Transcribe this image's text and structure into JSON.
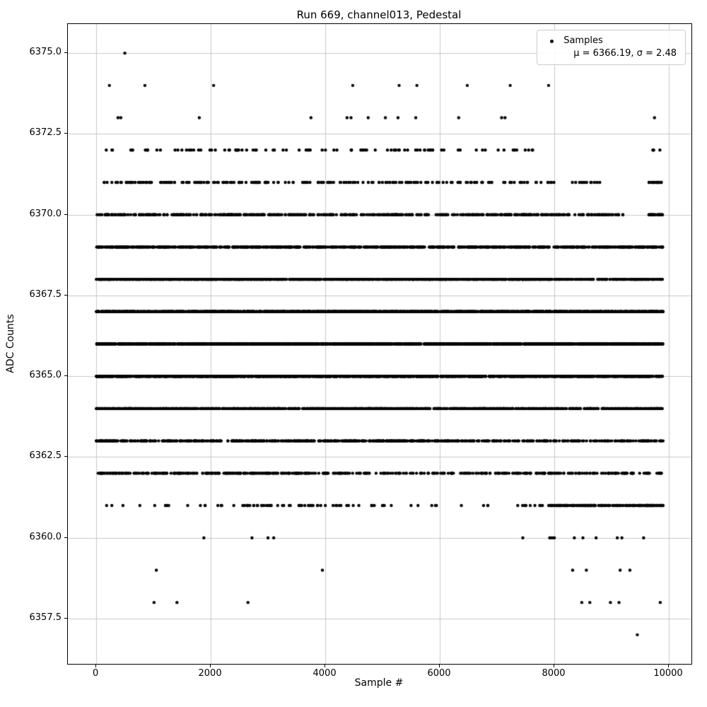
{
  "figure": {
    "title": "Run 669, channel013, Pedestal",
    "xlabel": "Sample #",
    "ylabel": "ADC Counts",
    "legend": {
      "marker": "dot-icon",
      "line1": "Samples",
      "line2": "μ = 6366.19, σ = 2.48"
    }
  },
  "chart_data": {
    "type": "scatter",
    "title": "Run 669, channel013, Pedestal",
    "xlabel": "Sample #",
    "ylabel": "ADC Counts",
    "xlim": [
      -495,
      10395
    ],
    "ylim": [
      6356.1,
      6375.9
    ],
    "xticks": [
      0,
      2000,
      4000,
      6000,
      8000,
      10000
    ],
    "xtick_labels": [
      "0",
      "2000",
      "4000",
      "6000",
      "8000",
      "10000"
    ],
    "yticks": [
      6357.5,
      6360.0,
      6362.5,
      6365.0,
      6367.5,
      6370.0,
      6372.5,
      6375.0
    ],
    "ytick_labels": [
      "6357.5",
      "6360.0",
      "6362.5",
      "6365.0",
      "6367.5",
      "6370.0",
      "6372.5",
      "6375.0"
    ],
    "grid": true,
    "grid_color": "#c8c8c8",
    "marker_color": "#000000",
    "marker_radius": 2.2,
    "legend_position": "upper right",
    "n_samples": 10000,
    "x_range": [
      0,
      9900
    ],
    "stats": {
      "mu": 6366.19,
      "sigma": 2.48
    },
    "bands": [
      {
        "adc": 6375,
        "x": [
          500
        ]
      },
      {
        "adc": 6374,
        "x": [
          230,
          850,
          2050,
          4480,
          5290,
          5600,
          6480,
          7230,
          7900
        ]
      },
      {
        "adc": 6373,
        "x": [
          380,
          430,
          1800,
          3750,
          4380,
          4450,
          4750,
          5050,
          5270,
          5580,
          6330,
          7080,
          7140,
          9750
        ]
      },
      {
        "adc": 6372,
        "segments": [
          [
            30,
            7700,
            96
          ],
          [
            9700,
            9850,
            4
          ]
        ]
      },
      {
        "adc": 6371,
        "segments": [
          [
            20,
            8000,
            210
          ],
          [
            8200,
            8800,
            12
          ],
          [
            9650,
            9900,
            18
          ]
        ]
      },
      {
        "adc": 6370,
        "segments": [
          [
            10,
            8100,
            460
          ],
          [
            8100,
            9200,
            50
          ],
          [
            9650,
            9900,
            25
          ]
        ]
      },
      {
        "adc": 6369,
        "segments": [
          [
            0,
            9900,
            840
          ]
        ]
      },
      {
        "adc": 6368,
        "segments": [
          [
            0,
            8000,
            1060
          ],
          [
            8000,
            9300,
            90
          ],
          [
            9300,
            9900,
            65
          ]
        ]
      },
      {
        "adc": 6367,
        "segments": [
          [
            0,
            9900,
            1520
          ]
        ]
      },
      {
        "adc": 6366,
        "segments": [
          [
            0,
            9900,
            1600
          ]
        ]
      },
      {
        "adc": 6365,
        "segments": [
          [
            0,
            9900,
            1430
          ]
        ]
      },
      {
        "adc": 6364,
        "segments": [
          [
            0,
            9900,
            1100
          ]
        ]
      },
      {
        "adc": 6363,
        "segments": [
          [
            0,
            6200,
            540
          ],
          [
            6200,
            9900,
            190
          ]
        ]
      },
      {
        "adc": 6362,
        "segments": [
          [
            0,
            4300,
            260
          ],
          [
            4300,
            7300,
            110
          ],
          [
            7300,
            9900,
            120
          ]
        ]
      },
      {
        "adc": 6361,
        "segments": [
          [
            150,
            2600,
            20
          ],
          [
            2600,
            4600,
            48
          ],
          [
            4600,
            7900,
            28
          ],
          [
            7900,
            9900,
            190
          ]
        ]
      },
      {
        "adc": 6360,
        "x": [
          1880,
          2720,
          3000,
          3100,
          7450,
          7920,
          7960,
          8000,
          8350,
          8500,
          8730,
          9100,
          9180,
          9560
        ]
      },
      {
        "adc": 6359,
        "x": [
          1050,
          3950,
          8320,
          8560,
          9150,
          9320
        ]
      },
      {
        "adc": 6358,
        "x": [
          1010,
          1410,
          2650,
          8480,
          8620,
          8980,
          9130,
          9850
        ]
      },
      {
        "adc": 6357,
        "x": [
          9450
        ]
      }
    ]
  }
}
